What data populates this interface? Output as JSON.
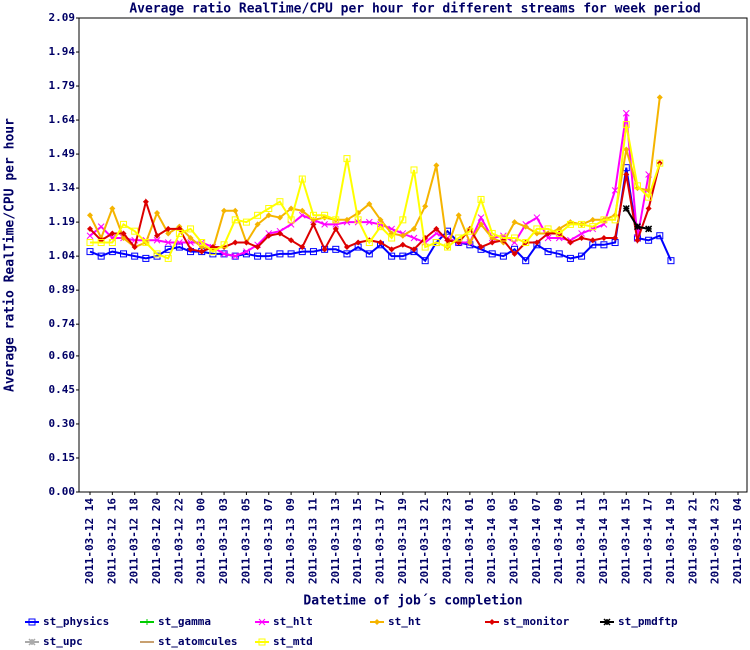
{
  "chart_data": {
    "type": "line",
    "title": "Average ratio RealTime/CPU per hour for different streams for week period",
    "y_label": "Average ratio RealTime/CPU per hour",
    "x_label": "Datetime of job´s completion",
    "categories": [
      "2011-03-12 14",
      null,
      "2011-03-12 16",
      null,
      "2011-03-12 18",
      null,
      "2011-03-12 20",
      null,
      "2011-03-12 22",
      null,
      "2011-03-13 00",
      null,
      "2011-03-13 03",
      null,
      "2011-03-13 05",
      null,
      "2011-03-13 07",
      null,
      "2011-03-13 09",
      null,
      "2011-03-13 11",
      null,
      "2011-03-13 13",
      null,
      "2011-03-13 15",
      null,
      "2011-03-13 17",
      null,
      "2011-03-13 19",
      null,
      "2011-03-13 21",
      null,
      "2011-03-13 23",
      null,
      "2011-03-14 01",
      null,
      "2011-03-14 03",
      null,
      "2011-03-14 05",
      null,
      "2011-03-14 07",
      null,
      "2011-03-14 09",
      null,
      "2011-03-14 11",
      null,
      "2011-03-14 13",
      null,
      "2011-03-14 15",
      null,
      "2011-03-14 17",
      null,
      "2011-03-14 19",
      null,
      "2011-03-14 21",
      null,
      "2011-03-14 23",
      null,
      "2011-03-15 04"
    ],
    "ylim": [
      0,
      2.09
    ],
    "yticks": [
      {
        "value": 0,
        "label": "0.00"
      },
      0.15,
      {
        "value": 0.3,
        "label": "0.30"
      },
      0.45,
      {
        "value": 0.6,
        "label": "0.60"
      },
      0.74,
      0.89,
      1.04,
      1.19,
      1.34,
      1.49,
      1.64,
      1.79,
      1.94,
      2.09
    ],
    "grid": false,
    "series": [
      {
        "name": "st_physics",
        "color": "#0000ff",
        "marker": "square",
        "values": [
          1.06,
          1.04,
          1.06,
          1.05,
          1.04,
          1.03,
          1.04,
          1.07,
          1.08,
          1.06,
          1.06,
          1.05,
          1.05,
          1.04,
          1.05,
          1.04,
          1.04,
          1.05,
          1.05,
          1.06,
          1.06,
          1.07,
          1.07,
          1.05,
          1.08,
          1.05,
          1.09,
          1.04,
          1.04,
          1.06,
          1.02,
          1.1,
          1.15,
          1.1,
          1.09,
          1.07,
          1.05,
          1.04,
          1.07,
          1.02,
          1.09,
          1.06,
          1.05,
          1.03,
          1.04,
          1.09,
          1.09,
          1.1,
          1.43,
          1.12,
          1.11,
          1.13,
          1.02,
          null,
          null,
          null,
          null,
          null,
          null
        ]
      },
      {
        "name": "st_gamma",
        "color": "#00cc00",
        "marker": "plus",
        "values": [
          null,
          null,
          null,
          null,
          null,
          null,
          null,
          null,
          null,
          null,
          null,
          null,
          null,
          null,
          null,
          null,
          null,
          null,
          null,
          null,
          null,
          null,
          null,
          null,
          null,
          null,
          null,
          null,
          null,
          null,
          null,
          null,
          null,
          null,
          null,
          null,
          null,
          null,
          null,
          null,
          null,
          null,
          null,
          null,
          null,
          null,
          null,
          null,
          null,
          null,
          null,
          null,
          null,
          null,
          null,
          null,
          null,
          null,
          null
        ]
      },
      {
        "name": "st_hlt",
        "color": "#ff00ff",
        "marker": "cross",
        "values": [
          1.13,
          1.17,
          1.12,
          1.12,
          1.11,
          1.11,
          1.11,
          1.1,
          1.1,
          1.1,
          1.1,
          1.08,
          1.05,
          1.04,
          1.06,
          1.09,
          1.14,
          1.15,
          1.18,
          1.22,
          1.2,
          1.18,
          1.18,
          1.19,
          1.19,
          1.19,
          1.18,
          1.16,
          1.14,
          1.12,
          1.1,
          1.14,
          1.12,
          1.1,
          1.1,
          1.21,
          1.12,
          1.13,
          1.1,
          1.18,
          1.21,
          1.12,
          1.12,
          1.11,
          1.14,
          1.16,
          1.18,
          1.33,
          1.67,
          1.12,
          1.4,
          null,
          null,
          null,
          null,
          null,
          null,
          null,
          null
        ]
      },
      {
        "name": "st_ht",
        "color": "#f5b400",
        "marker": "diamond",
        "values": [
          1.22,
          1.12,
          1.25,
          1.12,
          1.08,
          1.1,
          1.23,
          1.14,
          1.17,
          1.12,
          1.08,
          1.07,
          1.24,
          1.24,
          1.1,
          1.18,
          1.22,
          1.21,
          1.25,
          1.24,
          1.2,
          1.21,
          1.2,
          1.2,
          1.23,
          1.27,
          1.2,
          1.14,
          1.13,
          1.16,
          1.26,
          1.44,
          1.08,
          1.22,
          1.1,
          1.18,
          1.12,
          1.1,
          1.19,
          1.17,
          1.14,
          1.14,
          1.16,
          1.19,
          1.18,
          1.2,
          1.2,
          1.22,
          1.51,
          1.34,
          1.33,
          1.74,
          null,
          null,
          null,
          null,
          null,
          null,
          null
        ]
      },
      {
        "name": "st_monitor",
        "color": "#dd0000",
        "marker": "diamond",
        "values": [
          1.16,
          1.11,
          1.14,
          1.14,
          1.08,
          1.28,
          1.13,
          1.16,
          1.16,
          1.07,
          1.06,
          1.08,
          1.08,
          1.1,
          1.1,
          1.08,
          1.13,
          1.14,
          1.11,
          1.08,
          1.18,
          1.07,
          1.16,
          1.08,
          1.1,
          1.11,
          1.1,
          1.07,
          1.09,
          1.07,
          1.12,
          1.16,
          1.11,
          1.1,
          1.16,
          1.08,
          1.1,
          1.11,
          1.05,
          1.1,
          1.1,
          1.14,
          1.14,
          1.1,
          1.12,
          1.11,
          1.12,
          1.12,
          1.4,
          1.11,
          1.25,
          1.45,
          null,
          null,
          null,
          null,
          null,
          null,
          null
        ]
      },
      {
        "name": "st_pmdftp",
        "color": "#000000",
        "marker": "star",
        "values": [
          null,
          null,
          null,
          null,
          null,
          null,
          null,
          null,
          null,
          null,
          null,
          null,
          null,
          null,
          null,
          null,
          null,
          null,
          null,
          null,
          null,
          null,
          null,
          null,
          null,
          null,
          null,
          null,
          null,
          null,
          null,
          null,
          null,
          null,
          null,
          null,
          null,
          null,
          null,
          null,
          null,
          null,
          null,
          null,
          null,
          null,
          null,
          null,
          1.25,
          1.17,
          1.16,
          null,
          null,
          null,
          null,
          null,
          null,
          null,
          null
        ]
      },
      {
        "name": "st_upc",
        "color": "#aaaaaa",
        "marker": "star",
        "values": [
          null,
          null,
          null,
          null,
          null,
          null,
          null,
          null,
          null,
          null,
          null,
          null,
          null,
          null,
          null,
          null,
          null,
          null,
          null,
          null,
          null,
          null,
          null,
          null,
          null,
          null,
          null,
          null,
          null,
          null,
          null,
          null,
          null,
          null,
          null,
          null,
          null,
          null,
          null,
          null,
          null,
          null,
          null,
          null,
          null,
          null,
          null,
          null,
          null,
          null,
          null,
          null,
          null,
          null,
          null,
          null,
          null,
          null,
          null
        ]
      },
      {
        "name": "st_atomcules",
        "color": "#c8a070",
        "marker": "none",
        "values": [
          null,
          null,
          null,
          null,
          null,
          null,
          null,
          null,
          null,
          null,
          null,
          null,
          null,
          null,
          null,
          null,
          null,
          null,
          null,
          null,
          null,
          null,
          null,
          null,
          null,
          null,
          null,
          null,
          null,
          null,
          null,
          null,
          null,
          null,
          null,
          null,
          null,
          null,
          null,
          null,
          null,
          null,
          null,
          null,
          null,
          null,
          null,
          null,
          null,
          null,
          null,
          null,
          null,
          null,
          null,
          null,
          null,
          null,
          null
        ]
      },
      {
        "name": "st_mtd",
        "color": "#ffff00",
        "marker": "square",
        "values": [
          1.1,
          1.1,
          1.1,
          1.18,
          1.15,
          1.1,
          1.05,
          1.03,
          1.14,
          1.16,
          1.1,
          1.06,
          1.09,
          1.2,
          1.19,
          1.22,
          1.25,
          1.28,
          1.2,
          1.38,
          1.22,
          1.22,
          1.2,
          1.47,
          1.2,
          1.1,
          1.17,
          1.12,
          1.2,
          1.42,
          1.08,
          1.1,
          1.08,
          1.12,
          1.15,
          1.29,
          1.14,
          1.12,
          1.12,
          1.1,
          1.16,
          1.16,
          1.14,
          1.18,
          1.18,
          1.17,
          1.2,
          1.2,
          1.62,
          1.35,
          1.3,
          1.45,
          null,
          null,
          null,
          null,
          null,
          null,
          null
        ]
      }
    ]
  }
}
